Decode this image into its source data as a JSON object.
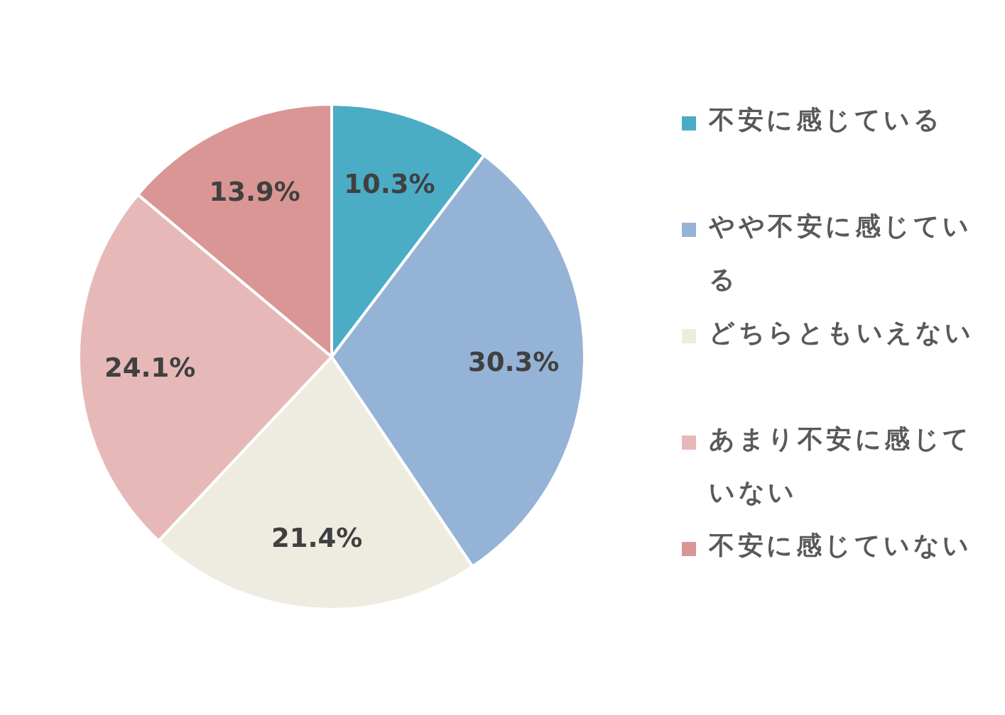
{
  "chart_data": {
    "type": "pie",
    "categories": [
      "不安に感じている",
      "やや不安に感じている",
      "どちらともいえない",
      "あまり不安に感じていない",
      "不安に感じていない"
    ],
    "values": [
      10.3,
      30.3,
      21.4,
      24.1,
      13.9
    ],
    "colors": [
      "#4bacc6",
      "#95b3d7",
      "#eeece1",
      "#e6b9b8",
      "#d99694"
    ],
    "value_labels": [
      "10.3%",
      "30.3%",
      "21.4%",
      "24.1%",
      "13.9%"
    ],
    "legend": "right"
  }
}
